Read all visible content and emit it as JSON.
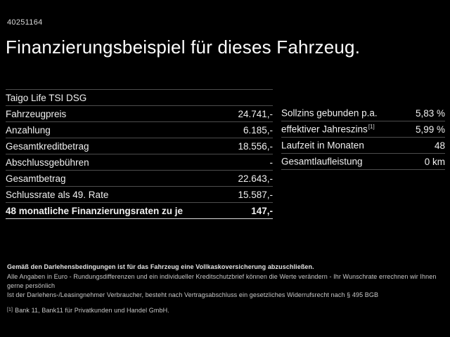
{
  "header": {
    "id_number": "40251164",
    "title": "Finanzierungsbeispiel für dieses Fahrzeug."
  },
  "vehicle": {
    "model": "Taigo Life TSI DSG"
  },
  "left_table": {
    "rows": [
      {
        "label": "Fahrzeugpreis",
        "value": "24.741,-"
      },
      {
        "label": "Anzahlung",
        "value": "6.185,-"
      },
      {
        "label": "Gesamtkreditbetrag",
        "value": "18.556,-"
      },
      {
        "label": "Abschlussgebühren",
        "value": "-"
      },
      {
        "label": "Gesamtbetrag",
        "value": "22.643,-"
      },
      {
        "label": "Schlussrate als 49. Rate",
        "value": "15.587,-"
      }
    ],
    "total_row": {
      "label": "48 monatliche Finanzierungsraten zu je",
      "value": "147,-"
    }
  },
  "right_table": {
    "rows": [
      {
        "label": "Sollzins gebunden p.a.",
        "footnote": "",
        "value": "5,83 %"
      },
      {
        "label": "effektiver Jahreszins",
        "footnote": "[1]",
        "value": "5,99 %"
      },
      {
        "label": "Laufzeit in Monaten",
        "footnote": "",
        "value": "48"
      },
      {
        "label": "Gesamtlaufleistung",
        "footnote": "",
        "value": "0 km"
      }
    ]
  },
  "footer": {
    "bold_note": "Gemäß den Darlehensbedingungen ist für das Fahrzeug eine Vollkaskoversicherung abzuschließen.",
    "note_line1": "Alle Angaben in Euro - Rundungsdifferenzen und ein individueller Kreditschutzbrief können die Werte verändern - Ihr Wunschrate errechnen wir Ihnen gerne persönlich",
    "note_line2": "Ist der Darlehens-/Leasingnehmer Verbraucher, besteht nach Vertragsabschluss ein gesetzliches Widerrufsrecht nach § 495 BGB",
    "footnote_marker": "[1]",
    "footnote_text": "Bank 11, Bank11 für Privatkunden und Handel GmbH."
  },
  "colors": {
    "background": "#000000",
    "text": "#f2f2f2",
    "separator": "#4d4d4d",
    "separator_bright": "#dcdcdc",
    "muted_text": "#c9c9c9"
  }
}
